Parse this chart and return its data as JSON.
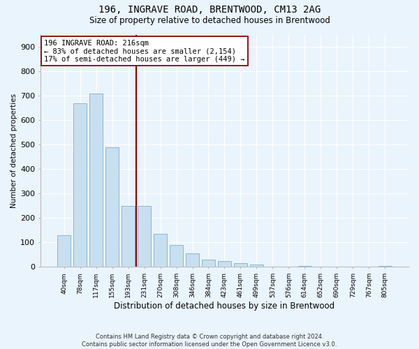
{
  "title1": "196, INGRAVE ROAD, BRENTWOOD, CM13 2AG",
  "title2": "Size of property relative to detached houses in Brentwood",
  "xlabel": "Distribution of detached houses by size in Brentwood",
  "ylabel": "Number of detached properties",
  "annotation_line1": "196 INGRAVE ROAD: 216sqm",
  "annotation_line2": "← 83% of detached houses are smaller (2,154)",
  "annotation_line3": "17% of semi-detached houses are larger (449) →",
  "bar_color": "#c8dff0",
  "bar_edge_color": "#7bafd4",
  "marker_color": "#8b0000",
  "bg_color": "#eaf4fc",
  "grid_color": "#ffffff",
  "categories": [
    "40sqm",
    "78sqm",
    "117sqm",
    "155sqm",
    "193sqm",
    "231sqm",
    "270sqm",
    "308sqm",
    "346sqm",
    "384sqm",
    "423sqm",
    "461sqm",
    "499sqm",
    "537sqm",
    "576sqm",
    "614sqm",
    "652sqm",
    "690sqm",
    "729sqm",
    "767sqm",
    "805sqm"
  ],
  "values": [
    130,
    670,
    710,
    490,
    250,
    250,
    135,
    90,
    55,
    30,
    24,
    16,
    10,
    0,
    0,
    5,
    0,
    0,
    0,
    0,
    4
  ],
  "marker_bin_index": 5,
  "ylim": [
    0,
    950
  ],
  "yticks": [
    0,
    100,
    200,
    300,
    400,
    500,
    600,
    700,
    800,
    900
  ],
  "footer1": "Contains HM Land Registry data © Crown copyright and database right 2024.",
  "footer2": "Contains public sector information licensed under the Open Government Licence v3.0."
}
